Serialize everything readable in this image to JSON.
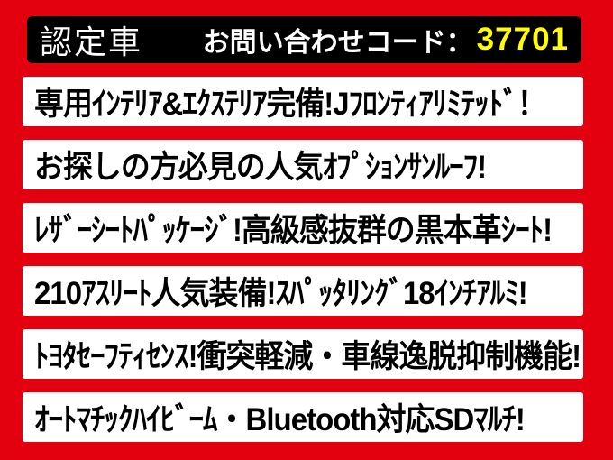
{
  "banner": {
    "colors": {
      "background": "#e3000f",
      "header_background": "#000000",
      "header_text": "#ffffff",
      "inquiry_code_color": "#ffff00",
      "row_background": "#ffffff",
      "row_text": "#000000"
    },
    "header": {
      "badge": "認定車",
      "inquiry_label": "お問い合わせコード：",
      "inquiry_code": "37701"
    },
    "features": [
      "専用ｲﾝﾃﾘｱ&ｴｸｽﾃﾘｱ完備!Jﾌﾛﾝﾃｨｱﾘﾐﾃｯﾄﾞ！",
      "お探しの方必見の人気ｵﾌﾟｼｮﾝｻﾝﾙｰﾌ!",
      "ﾚｻﾞｰｼｰﾄﾊﾟｯｹｰｼﾞ!高級感抜群の黒本革ｼｰﾄ!",
      "210ｱｽﾘｰﾄ人気装備!ｽﾊﾟｯﾀﾘﾝｸﾞ18ｲﾝﾁｱﾙﾐ!",
      "ﾄﾖﾀｾｰﾌﾃｨｾﾝｽ!衝突軽減・車線逸脱抑制機能!",
      "ｵｰﾄﾏﾁｯｸﾊｲﾋﾞｰﾑ・Bluetooth対応SDﾏﾙﾁ!"
    ]
  }
}
